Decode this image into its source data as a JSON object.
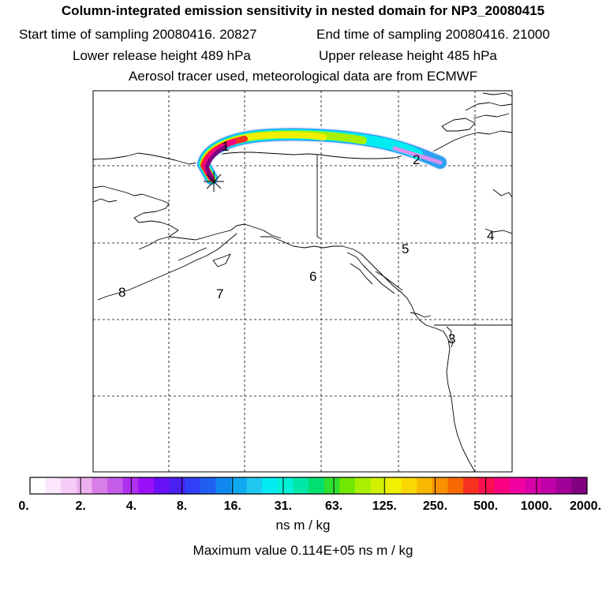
{
  "header": {
    "title": "Column-integrated emission sensitivity in nested domain for NP3_20080415",
    "start_time": "Start time of sampling 20080416. 20827",
    "end_time": "End time of sampling 20080416. 21000",
    "lower_height": "Lower release height  489 hPa",
    "upper_height": "Upper release height  485 hPa",
    "tracer_info": "Aerosol tracer used, meteorological data are from ECMWF"
  },
  "map": {
    "release_marker": "release-site-star",
    "plume_labels": [
      "1",
      "2"
    ],
    "region_labels": [
      "3",
      "4",
      "5",
      "6",
      "7",
      "8"
    ]
  },
  "legend": {
    "colors": [
      "#ffffff",
      "#fbe6fb",
      "#f5ccf5",
      "#eeb0ee",
      "#d87ee8",
      "#c45ce8",
      "#b030f0",
      "#9a10f8",
      "#6a10f8",
      "#4a20f0",
      "#3040f8",
      "#2060f0",
      "#1088f0",
      "#10a8f0",
      "#20c8f0",
      "#00ecf0",
      "#00f0d8",
      "#00e8a8",
      "#00e070",
      "#30e030",
      "#70e800",
      "#a8f000",
      "#d0f000",
      "#f0f000",
      "#f8d800",
      "#f8b800",
      "#f89000",
      "#f86800",
      "#f83020",
      "#f81050",
      "#f80080",
      "#f000a0",
      "#d800a8",
      "#c000a8",
      "#a00098",
      "#800080"
    ],
    "major_colors": 12,
    "tick_labels": [
      "0.",
      "2.",
      "4.",
      "8.",
      "16.",
      "31.",
      "63.",
      "125.",
      "250.",
      "500.",
      "1000.",
      "2000."
    ],
    "units": "ns m / kg",
    "max_value_text": "Maximum value  0.114E+05 ns m / kg"
  }
}
